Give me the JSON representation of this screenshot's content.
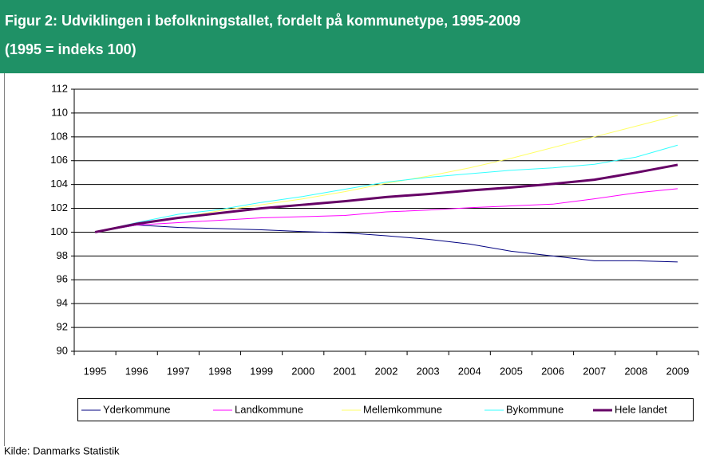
{
  "chart_data": {
    "type": "line",
    "title": "Figur 2: Udviklingen i befolkningstallet, fordelt på kommunetype, 1995-2009",
    "subtitle": "(1995 = indeks 100)",
    "source": "Kilde: Danmarks Statistik",
    "categories": [
      "1995",
      "1996",
      "1997",
      "1998",
      "1999",
      "2000",
      "2001",
      "2002",
      "2003",
      "2004",
      "2005",
      "2006",
      "2007",
      "2008",
      "2009"
    ],
    "series": [
      {
        "name": "Yderkommune",
        "color": "#000080",
        "width": 1,
        "values": [
          100,
          100.6,
          100.4,
          100.3,
          100.2,
          100.05,
          99.95,
          99.7,
          99.4,
          99.0,
          98.4,
          98.0,
          97.6,
          97.6,
          97.5
        ]
      },
      {
        "name": "Landkommune",
        "color": "#ff00ff",
        "width": 1,
        "values": [
          100,
          100.6,
          100.8,
          101.0,
          101.2,
          101.3,
          101.4,
          101.7,
          101.85,
          102.05,
          102.2,
          102.35,
          102.8,
          103.3,
          103.65
        ]
      },
      {
        "name": "Mellemkommune",
        "color": "#ffff66",
        "width": 1,
        "values": [
          100,
          100.7,
          101.2,
          101.8,
          102.3,
          102.8,
          103.4,
          104.1,
          104.7,
          105.4,
          106.2,
          107.1,
          108.0,
          108.9,
          109.8
        ]
      },
      {
        "name": "Bykommune",
        "color": "#33ffff",
        "width": 1,
        "values": [
          100,
          100.8,
          101.5,
          101.9,
          102.5,
          103.0,
          103.6,
          104.2,
          104.6,
          104.9,
          105.2,
          105.4,
          105.7,
          106.3,
          107.3
        ]
      },
      {
        "name": "Hele landet",
        "color": "#660066",
        "width": 3,
        "values": [
          100,
          100.7,
          101.2,
          101.6,
          102.0,
          102.3,
          102.6,
          102.95,
          103.2,
          103.5,
          103.75,
          104.05,
          104.4,
          105.0,
          105.65
        ]
      }
    ],
    "ylim": [
      90,
      112
    ],
    "yticks": [
      90,
      92,
      94,
      96,
      98,
      100,
      102,
      104,
      106,
      108,
      110,
      112
    ],
    "grid": true,
    "legend": "bottom"
  }
}
